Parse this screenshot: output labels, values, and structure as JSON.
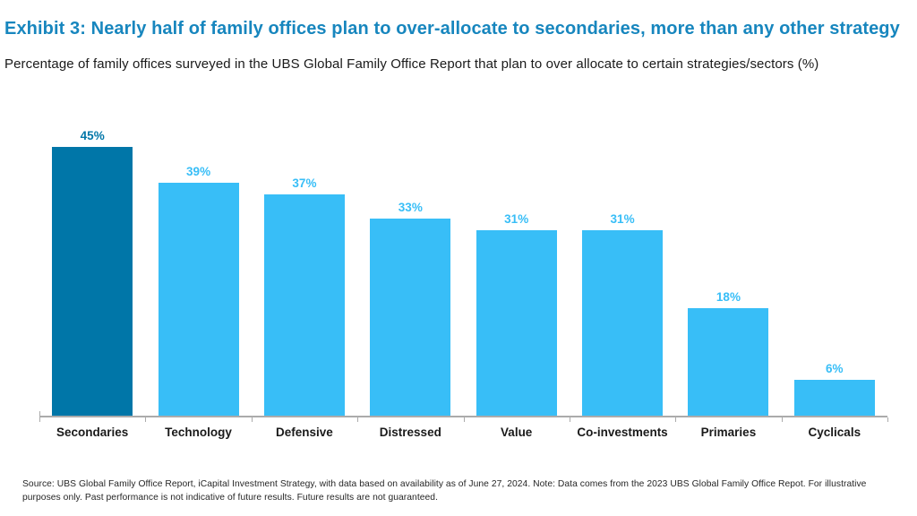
{
  "title": "Exhibit 3: Nearly half of family offices plan to over-allocate to secondaries, more than any other strategy",
  "subtitle": "Percentage of family offices surveyed in the UBS Global Family Office Report that plan to over allocate to certain strategies/sectors (%)",
  "source_note": "Source: UBS Global Family Office Report, iCapital Investment Strategy, with data based on availability as of June 27, 2024. Note: Data comes from the 2023 UBS Global Family Office Repot. For illustrative purposes only. Past performance is not indicative of future results. Future results are not guaranteed.",
  "colors": {
    "title_blue": "#1786BE",
    "highlight_bar": "#0076A8",
    "default_bar": "#38BEF7",
    "axis_line": "#ABABAB",
    "category_text": "#1A1A1A"
  },
  "chart_data": {
    "type": "bar",
    "title": "Percentage of family offices that plan to over allocate to certain strategies/sectors (%)",
    "categories": [
      "Secondaries",
      "Technology",
      "Defensive",
      "Distressed",
      "Value",
      "Co-investments",
      "Primaries",
      "Cyclicals"
    ],
    "values": [
      45,
      39,
      37,
      33,
      31,
      31,
      18,
      6
    ],
    "value_labels": [
      "45%",
      "39%",
      "37%",
      "33%",
      "31%",
      "31%",
      "18%",
      "6%"
    ],
    "highlight_index": 0,
    "xlabel": "",
    "ylabel": "",
    "ylim": [
      0,
      45
    ],
    "grid": false,
    "legend": false,
    "data_labels_position": "above-bar"
  }
}
